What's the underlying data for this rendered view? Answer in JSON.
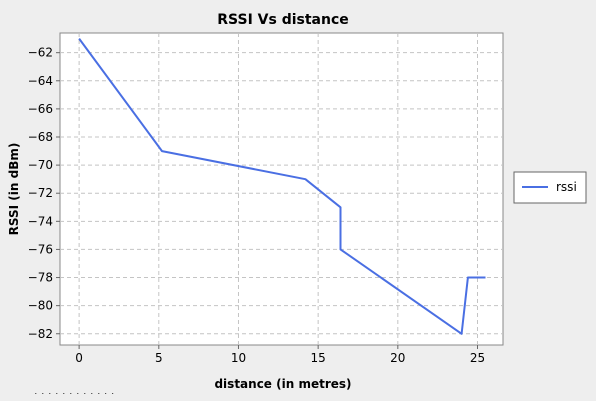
{
  "chart_data": {
    "type": "line",
    "title": "RSSI Vs distance",
    "xlabel": "distance (in metres)",
    "ylabel": "RSSI (in dBm)",
    "xlim": [
      -1.2,
      26.6
    ],
    "ylim": [
      -82.8,
      -60.6
    ],
    "xticks": [
      0,
      5,
      10,
      15,
      20,
      25
    ],
    "yticks": [
      -62,
      -64,
      -66,
      -68,
      -70,
      -72,
      -74,
      -76,
      -78,
      -80,
      -82
    ],
    "grid": true,
    "legend_position": "right",
    "series": [
      {
        "name": "rssi",
        "color": "#4a6fe3",
        "x": [
          0,
          5.2,
          14.2,
          16.4,
          16.4,
          24.0,
          24.4,
          25.5
        ],
        "y": [
          -61,
          -69,
          -71,
          -73,
          -76,
          -82,
          -78,
          -78
        ]
      }
    ]
  },
  "footer_fragment": "·  ·  ·   ·  ·    ·   ·   ·  ·  ·   ·  ·"
}
